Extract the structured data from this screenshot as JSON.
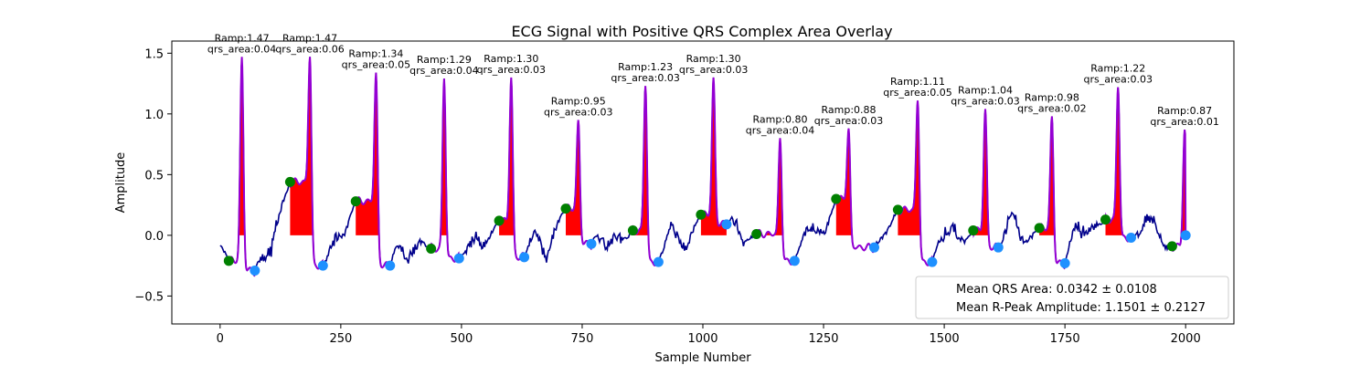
{
  "chart_data": {
    "type": "line",
    "title": "ECG Signal with Positive QRS Complex Area Overlay",
    "xlabel": "Sample Number",
    "ylabel": "Amplitude",
    "xlim": [
      -100,
      2100
    ],
    "ylim": [
      -0.73,
      1.6
    ],
    "xticks": [
      0,
      250,
      500,
      750,
      1000,
      1250,
      1500,
      1750,
      2000
    ],
    "yticks": [
      -0.5,
      0.0,
      0.5,
      1.0,
      1.5
    ],
    "ytick_labels": [
      "−0.5",
      "0.0",
      "0.5",
      "1.0",
      "1.5"
    ],
    "grid": false,
    "legend_position": "lower-right",
    "legend": [
      "Mean QRS Area: 0.0342 ± 0.0108",
      "Mean R-Peak Amplitude: 1.1501 ± 0.2127"
    ],
    "colors": {
      "signal": "#00008b",
      "qrs_segment": "#9400d3",
      "qrs_area": "#ff0000",
      "onset_marker": "#008000",
      "offset_marker": "#1e90ff"
    },
    "beats": [
      {
        "onset": [
          18,
          -0.21
        ],
        "peak": [
          45,
          1.47
        ],
        "offset": [
          72,
          -0.29
        ],
        "label_ramp": "Ramp:1.47",
        "label_area": "qrs_area:0.04"
      },
      {
        "onset": [
          145,
          0.44
        ],
        "peak": [
          186,
          1.47
        ],
        "offset": [
          213,
          -0.25
        ],
        "label_ramp": "Ramp:1.47",
        "label_area": "qrs_area:0.06"
      },
      {
        "onset": [
          281,
          0.28
        ],
        "peak": [
          323,
          1.34
        ],
        "offset": [
          352,
          -0.25
        ],
        "label_ramp": "Ramp:1.34",
        "label_area": "qrs_area:0.05"
      },
      {
        "onset": [
          437,
          -0.11
        ],
        "peak": [
          464,
          1.29
        ],
        "offset": [
          495,
          -0.19
        ],
        "label_ramp": "Ramp:1.29",
        "label_area": "qrs_area:0.04"
      },
      {
        "onset": [
          578,
          0.12
        ],
        "peak": [
          603,
          1.3
        ],
        "offset": [
          630,
          -0.18
        ],
        "label_ramp": "Ramp:1.30",
        "label_area": "qrs_area:0.03"
      },
      {
        "onset": [
          716,
          0.22
        ],
        "peak": [
          742,
          0.95
        ],
        "offset": [
          769,
          -0.07
        ],
        "label_ramp": "Ramp:0.95",
        "label_area": "qrs_area:0.03"
      },
      {
        "onset": [
          855,
          0.04
        ],
        "peak": [
          881,
          1.23
        ],
        "offset": [
          908,
          -0.22
        ],
        "label_ramp": "Ramp:1.23",
        "label_area": "qrs_area:0.03"
      },
      {
        "onset": [
          996,
          0.17
        ],
        "peak": [
          1022,
          1.3
        ],
        "offset": [
          1049,
          0.09
        ],
        "label_ramp": "Ramp:1.30",
        "label_area": "qrs_area:0.03"
      },
      {
        "onset": [
          1111,
          0.01
        ],
        "peak": [
          1160,
          0.8
        ],
        "offset": [
          1190,
          -0.21
        ],
        "label_ramp": "Ramp:0.80",
        "label_area": "qrs_area:0.04"
      },
      {
        "onset": [
          1276,
          0.3
        ],
        "peak": [
          1302,
          0.88
        ],
        "offset": [
          1355,
          -0.1
        ],
        "label_ramp": "Ramp:0.88",
        "label_area": "qrs_area:0.03"
      },
      {
        "onset": [
          1404,
          0.21
        ],
        "peak": [
          1445,
          1.11
        ],
        "offset": [
          1475,
          -0.22
        ],
        "label_ramp": "Ramp:1.11",
        "label_area": "qrs_area:0.05"
      },
      {
        "onset": [
          1560,
          0.04
        ],
        "peak": [
          1585,
          1.04
        ],
        "offset": [
          1612,
          -0.1
        ],
        "label_ramp": "Ramp:1.04",
        "label_area": "qrs_area:0.03"
      },
      {
        "onset": [
          1697,
          0.06
        ],
        "peak": [
          1723,
          0.98
        ],
        "offset": [
          1750,
          -0.23
        ],
        "label_ramp": "Ramp:0.98",
        "label_area": "qrs_area:0.02"
      },
      {
        "onset": [
          1834,
          0.13
        ],
        "peak": [
          1860,
          1.22
        ],
        "offset": [
          1887,
          -0.02
        ],
        "label_ramp": "Ramp:1.22",
        "label_area": "qrs_area:0.03"
      },
      {
        "onset": [
          1972,
          -0.09
        ],
        "peak": [
          1998,
          0.87
        ],
        "offset": [
          2000,
          0.0
        ],
        "label_ramp": "Ramp:0.87",
        "label_area": "qrs_area:0.01"
      }
    ]
  }
}
